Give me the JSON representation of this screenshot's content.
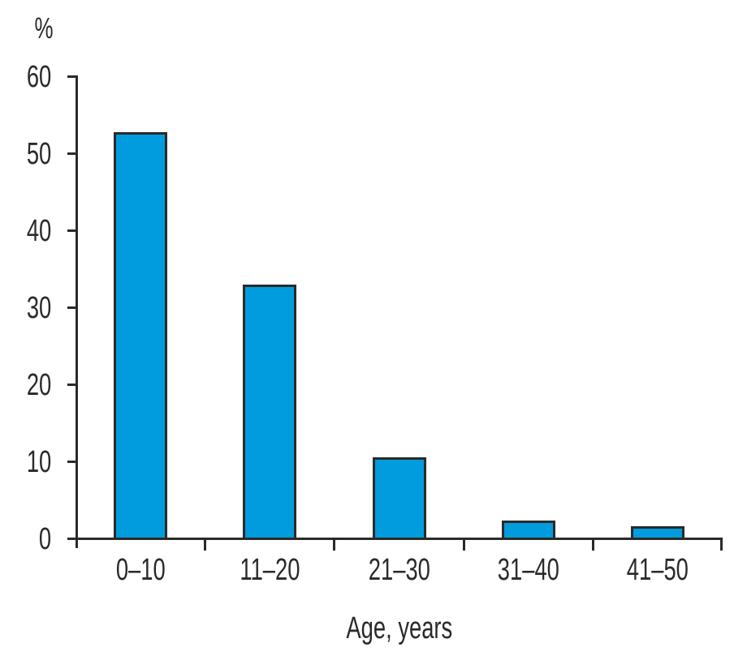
{
  "chart_data": {
    "type": "bar",
    "title": "",
    "ylabel": "%",
    "xlabel": "Age, years",
    "categories": [
      "0–10",
      "11–20",
      "21–30",
      "31–40",
      "41–50"
    ],
    "values": [
      52.6,
      32.8,
      10.4,
      2.2,
      1.5
    ],
    "ylim": [
      0,
      60
    ],
    "yticks": [
      0,
      10,
      20,
      30,
      40,
      50,
      60
    ],
    "grid": false,
    "legend": false,
    "colors": {
      "bar_fill": "#009CDE",
      "bar_border": "#2B2A29",
      "axis": "#2B2A29",
      "text": "#2B2A29"
    }
  }
}
